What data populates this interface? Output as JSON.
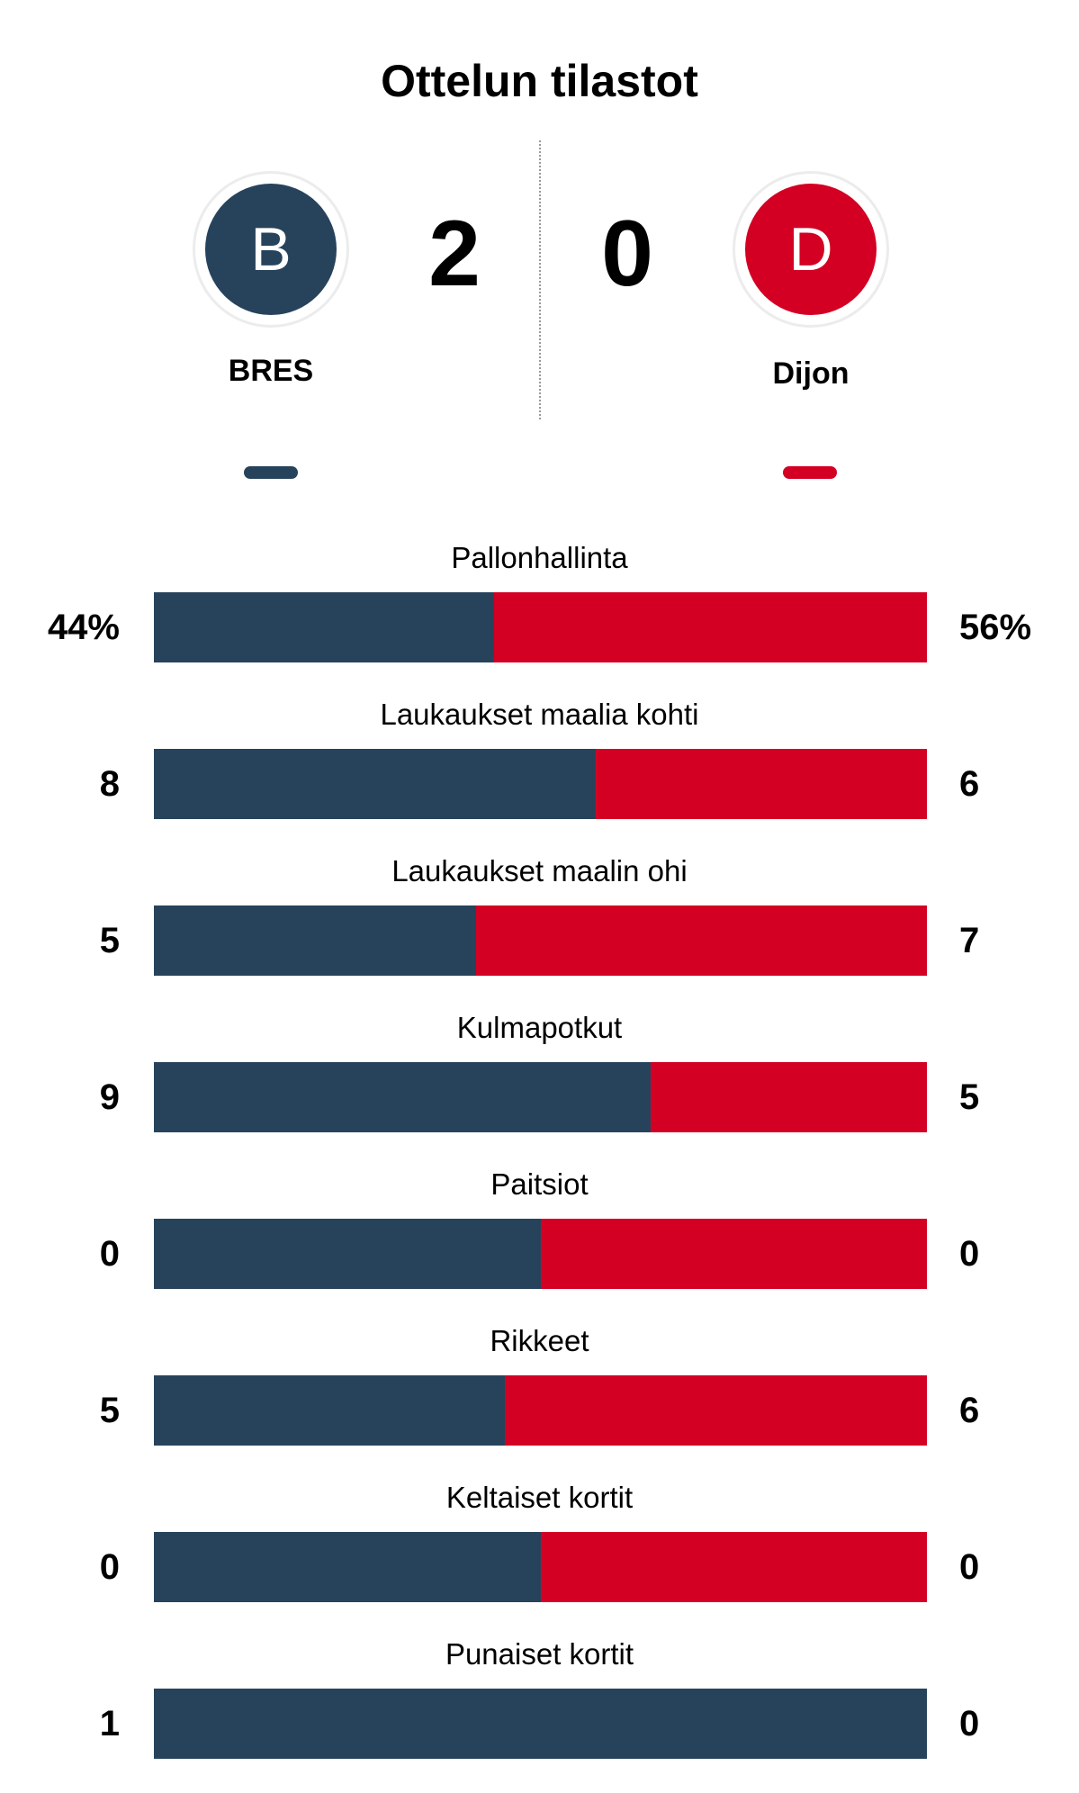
{
  "title": "Ottelun tilastot",
  "colors": {
    "home": "#27435c",
    "away": "#d30024"
  },
  "home": {
    "initial": "B",
    "name": "BRES",
    "score": "2"
  },
  "away": {
    "initial": "D",
    "name": "Dijon",
    "score": "0"
  },
  "stats": [
    {
      "label": "Pallonhallinta",
      "home": "44%",
      "away": "56%",
      "home_share": 0.44
    },
    {
      "label": "Laukaukset maalia kohti",
      "home": "8",
      "away": "6",
      "home_share": 0.5714
    },
    {
      "label": "Laukaukset maalin ohi",
      "home": "5",
      "away": "7",
      "home_share": 0.4167
    },
    {
      "label": "Kulmapotkut",
      "home": "9",
      "away": "5",
      "home_share": 0.6429
    },
    {
      "label": "Paitsiot",
      "home": "0",
      "away": "0",
      "home_share": 0.5
    },
    {
      "label": "Rikkeet",
      "home": "5",
      "away": "6",
      "home_share": 0.4545
    },
    {
      "label": "Keltaiset kortit",
      "home": "0",
      "away": "0",
      "home_share": 0.5
    },
    {
      "label": "Punaiset kortit",
      "home": "1",
      "away": "0",
      "home_share": 1.0
    }
  ]
}
